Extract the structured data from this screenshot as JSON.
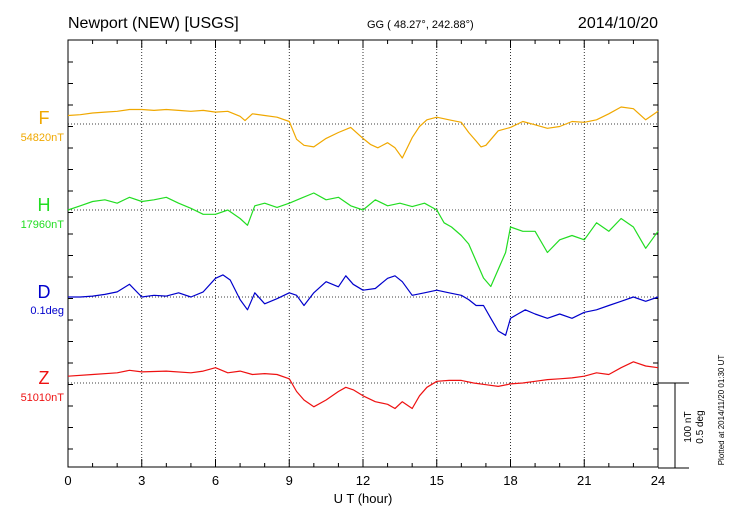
{
  "header": {
    "station": "Newport (NEW)  [USGS]",
    "coords": "GG ( 48.27°, 242.88°)",
    "date": "2014/10/20"
  },
  "footer": {
    "plotted": "Plotted at 2014/11/20 01:30 UT"
  },
  "colors": {
    "F": "#f0a800",
    "H": "#22dd22",
    "D": "#0000cc",
    "Z": "#ee1111"
  },
  "chart_data": {
    "type": "line",
    "xlabel": "U T (hour)",
    "xlim": [
      0,
      24
    ],
    "xticks": [
      "0",
      "3",
      "6",
      "9",
      "12",
      "15",
      "18",
      "21",
      "24"
    ],
    "scale_bar": {
      "top": "100 nT",
      "bottom": "0.5 deg"
    },
    "series": [
      {
        "name": "F",
        "baseline_label": "54820nT",
        "x": [
          0,
          0.5,
          1,
          1.5,
          2,
          2.5,
          3,
          3.5,
          4,
          4.5,
          5,
          5.5,
          6,
          6.5,
          7,
          7.2,
          7.5,
          8,
          8.5,
          9,
          9.3,
          9.6,
          10,
          10.5,
          11,
          11.5,
          12,
          12.3,
          12.6,
          13,
          13.3,
          13.6,
          14,
          14.3,
          14.6,
          15,
          15.5,
          16,
          16.3,
          16.6,
          16.8,
          17,
          17.5,
          18,
          18.5,
          19,
          19.5,
          20,
          20.5,
          21,
          21.5,
          22,
          22.5,
          23,
          23.5,
          24
        ],
        "values": [
          10,
          11,
          13,
          14,
          15,
          17,
          17,
          16,
          17,
          16,
          15,
          16,
          14,
          15,
          9,
          4,
          12,
          10,
          8,
          3,
          -18,
          -25,
          -27,
          -17,
          -10,
          -4,
          -17,
          -24,
          -28,
          -22,
          -28,
          -40,
          -16,
          -3,
          5,
          8,
          5,
          2,
          -10,
          -20,
          -27,
          -25,
          -8,
          -4,
          3,
          -1,
          -5,
          -3,
          3,
          2,
          5,
          12,
          20,
          18,
          5,
          15
        ]
      },
      {
        "name": "H",
        "baseline_label": "17960nT",
        "x": [
          0,
          0.5,
          1,
          1.5,
          2,
          2.5,
          3,
          3.5,
          4,
          4.5,
          5,
          5.5,
          6,
          6.5,
          7,
          7.3,
          7.6,
          8,
          8.5,
          9,
          9.5,
          10,
          10.5,
          11,
          11.5,
          12,
          12.5,
          13,
          13.5,
          14,
          14.5,
          15,
          15.3,
          15.6,
          16,
          16.3,
          16.6,
          16.9,
          17.2,
          17.5,
          17.8,
          18,
          18.5,
          19,
          19.5,
          20,
          20.5,
          21,
          21.5,
          22,
          22.5,
          23,
          23.5,
          24
        ],
        "values": [
          0,
          5,
          10,
          12,
          8,
          15,
          10,
          12,
          15,
          8,
          2,
          -5,
          -5,
          0,
          -10,
          -18,
          5,
          8,
          3,
          8,
          14,
          20,
          12,
          15,
          5,
          0,
          12,
          5,
          8,
          4,
          8,
          0,
          -15,
          -20,
          -30,
          -40,
          -60,
          -80,
          -90,
          -70,
          -50,
          -20,
          -25,
          -25,
          -50,
          -35,
          -30,
          -35,
          -15,
          -25,
          -10,
          -20,
          -45,
          -25
        ]
      },
      {
        "name": "D",
        "baseline_label": "0.1deg",
        "x": [
          0,
          0.5,
          1,
          1.5,
          2,
          2.5,
          3,
          3.5,
          4,
          4.5,
          5,
          5.5,
          6,
          6.3,
          6.6,
          7,
          7.3,
          7.6,
          8,
          8.5,
          9,
          9.3,
          9.6,
          10,
          10.5,
          11,
          11.3,
          11.6,
          12,
          12.5,
          13,
          13.3,
          13.6,
          14,
          14.5,
          15,
          15.5,
          16,
          16.3,
          16.6,
          16.9,
          17.2,
          17.5,
          17.8,
          18,
          18.3,
          18.6,
          19,
          19.5,
          20,
          20.5,
          21,
          21.5,
          22,
          22.5,
          23,
          23.5,
          24
        ],
        "values": [
          0,
          0,
          1,
          3,
          6,
          15,
          0,
          2,
          1,
          5,
          0,
          6,
          22,
          26,
          20,
          -3,
          -15,
          5,
          -8,
          -2,
          5,
          2,
          -10,
          5,
          18,
          12,
          25,
          15,
          8,
          10,
          22,
          25,
          18,
          2,
          5,
          8,
          5,
          2,
          -3,
          -10,
          -10,
          -25,
          -40,
          -45,
          -25,
          -20,
          -15,
          -20,
          -25,
          -20,
          -25,
          -18,
          -15,
          -10,
          -5,
          0,
          -5,
          0
        ]
      },
      {
        "name": "Z",
        "baseline_label": "51010nT",
        "x": [
          0,
          1,
          2,
          2.5,
          3,
          4,
          5,
          5.5,
          6,
          6.5,
          7,
          7.5,
          8,
          8.5,
          9,
          9.3,
          9.6,
          10,
          10.5,
          11,
          11.3,
          11.6,
          12,
          12.5,
          13,
          13.3,
          13.6,
          14,
          14.3,
          14.6,
          15,
          15.5,
          16,
          16.5,
          17,
          17.5,
          18,
          18.5,
          19,
          19.5,
          20,
          20.5,
          21,
          21.5,
          22,
          22.5,
          23,
          23.5,
          24
        ],
        "values": [
          8,
          10,
          12,
          15,
          13,
          14,
          12,
          14,
          18,
          12,
          14,
          10,
          11,
          10,
          5,
          -10,
          -20,
          -28,
          -20,
          -10,
          -5,
          -8,
          -15,
          -22,
          -25,
          -30,
          -22,
          -30,
          -15,
          -5,
          2,
          3,
          3,
          0,
          -2,
          -4,
          -1,
          0,
          2,
          4,
          5,
          6,
          8,
          12,
          10,
          18,
          25,
          20,
          18
        ]
      }
    ]
  }
}
